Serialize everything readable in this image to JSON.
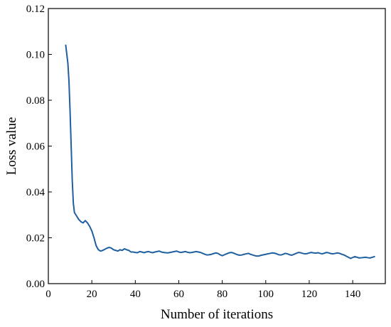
{
  "chart_data": {
    "type": "line",
    "title": "",
    "xlabel": "Number of iterations",
    "ylabel": "Loss value",
    "xlim": [
      0,
      155
    ],
    "ylim": [
      0,
      0.12
    ],
    "xticks": [
      0,
      20,
      40,
      60,
      80,
      100,
      120,
      140
    ],
    "xtick_labels": [
      "0",
      "20",
      "40",
      "60",
      "80",
      "100",
      "120",
      "140"
    ],
    "yticks": [
      0,
      0.02,
      0.04,
      0.06,
      0.08,
      0.1,
      0.12
    ],
    "ytick_labels": [
      "0.00",
      "0.02",
      "0.04",
      "0.06",
      "0.08",
      "0.10",
      "0.12"
    ],
    "grid": false,
    "legend": "none",
    "series": [
      {
        "color": "#1f5fa0",
        "x": [
          8,
          9,
          9.5,
          10,
          10.5,
          11,
          11.5,
          12,
          13,
          14,
          15,
          16,
          17,
          18,
          19,
          20,
          21,
          22,
          23,
          24,
          25,
          26,
          27,
          28,
          29,
          30,
          31,
          32,
          33,
          34,
          35,
          36,
          37,
          38,
          39,
          40,
          41,
          42,
          43,
          44,
          45,
          46,
          47,
          48,
          49,
          50,
          51,
          52,
          53,
          54,
          55,
          56,
          57,
          58,
          59,
          60,
          61,
          62,
          63,
          64,
          65,
          66,
          67,
          68,
          69,
          70,
          71,
          72,
          73,
          74,
          75,
          76,
          77,
          78,
          79,
          80,
          81,
          82,
          83,
          84,
          85,
          86,
          87,
          88,
          89,
          90,
          91,
          92,
          93,
          94,
          95,
          96,
          97,
          98,
          99,
          100,
          101,
          102,
          103,
          104,
          105,
          106,
          107,
          108,
          109,
          110,
          111,
          112,
          113,
          114,
          115,
          116,
          117,
          118,
          119,
          120,
          121,
          122,
          123,
          124,
          125,
          126,
          127,
          128,
          129,
          130,
          131,
          132,
          133,
          134,
          135,
          136,
          137,
          138,
          139,
          140,
          141,
          142,
          143,
          144,
          145,
          146,
          147,
          148,
          149,
          150
        ],
        "y": [
          0.104,
          0.096,
          0.088,
          0.075,
          0.06,
          0.045,
          0.035,
          0.031,
          0.0295,
          0.028,
          0.027,
          0.0265,
          0.0275,
          0.0265,
          0.025,
          0.023,
          0.02,
          0.0165,
          0.0148,
          0.0142,
          0.0145,
          0.015,
          0.0155,
          0.0158,
          0.0155,
          0.0148,
          0.0145,
          0.0142,
          0.0148,
          0.0145,
          0.0152,
          0.0148,
          0.0145,
          0.0138,
          0.0138,
          0.0136,
          0.0135,
          0.014,
          0.0138,
          0.0135,
          0.0138,
          0.014,
          0.0137,
          0.0135,
          0.0138,
          0.014,
          0.0142,
          0.0138,
          0.0136,
          0.0135,
          0.0134,
          0.0136,
          0.0138,
          0.014,
          0.0142,
          0.0138,
          0.0136,
          0.0138,
          0.014,
          0.0137,
          0.0135,
          0.0136,
          0.0138,
          0.014,
          0.0138,
          0.0136,
          0.0132,
          0.0128,
          0.0125,
          0.0126,
          0.0128,
          0.0131,
          0.0134,
          0.0132,
          0.0126,
          0.0122,
          0.0126,
          0.013,
          0.0134,
          0.0136,
          0.0134,
          0.013,
          0.0126,
          0.0124,
          0.0125,
          0.0128,
          0.013,
          0.0132,
          0.0128,
          0.0125,
          0.0122,
          0.012,
          0.0121,
          0.0124,
          0.0126,
          0.0128,
          0.013,
          0.0132,
          0.0134,
          0.0133,
          0.013,
          0.0126,
          0.0125,
          0.0128,
          0.0132,
          0.013,
          0.0126,
          0.0124,
          0.0128,
          0.0132,
          0.0136,
          0.0135,
          0.0132,
          0.013,
          0.0131,
          0.0134,
          0.0136,
          0.0134,
          0.0133,
          0.0135,
          0.0132,
          0.013,
          0.0133,
          0.0136,
          0.0134,
          0.0131,
          0.013,
          0.0132,
          0.0134,
          0.0132,
          0.0128,
          0.0125,
          0.012,
          0.0115,
          0.011,
          0.0114,
          0.0118,
          0.0115,
          0.0112,
          0.0113,
          0.0114,
          0.0115,
          0.0113,
          0.0112,
          0.0115,
          0.0118
        ]
      }
    ]
  }
}
